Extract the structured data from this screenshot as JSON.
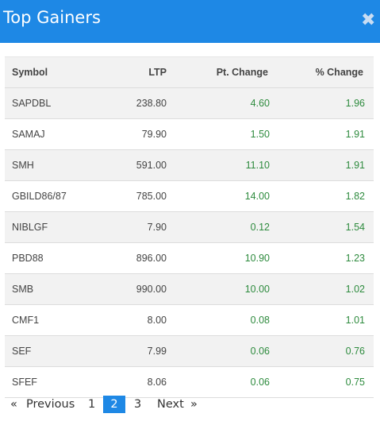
{
  "header": {
    "title": "Top Gainers",
    "close_glyph": "✖"
  },
  "table": {
    "columns": [
      "Symbol",
      "LTP",
      "Pt. Change",
      "% Change"
    ],
    "rows": [
      [
        "SAPDBL",
        "238.80",
        "4.60",
        "1.96"
      ],
      [
        "SAMAJ",
        "79.90",
        "1.50",
        "1.91"
      ],
      [
        "SMH",
        "591.00",
        "11.10",
        "1.91"
      ],
      [
        "GBILD86/87",
        "785.00",
        "14.00",
        "1.82"
      ],
      [
        "NIBLGF",
        "7.90",
        "0.12",
        "1.54"
      ],
      [
        "PBD88",
        "896.00",
        "10.90",
        "1.23"
      ],
      [
        "SMB",
        "990.00",
        "10.00",
        "1.02"
      ],
      [
        "CMF1",
        "8.00",
        "0.08",
        "1.01"
      ],
      [
        "SEF",
        "7.99",
        "0.06",
        "0.76"
      ],
      [
        "SFEF",
        "8.06",
        "0.06",
        "0.75"
      ]
    ]
  },
  "pagination": {
    "prev_arrow": "«",
    "previous": "Previous",
    "pages": [
      "1",
      "2",
      "3"
    ],
    "current_page": "2",
    "next": "Next",
    "next_arrow": "»"
  },
  "colors": {
    "header": "#1e88e5",
    "positive": "#2e8b3e",
    "active_page": "#1e88e5"
  }
}
